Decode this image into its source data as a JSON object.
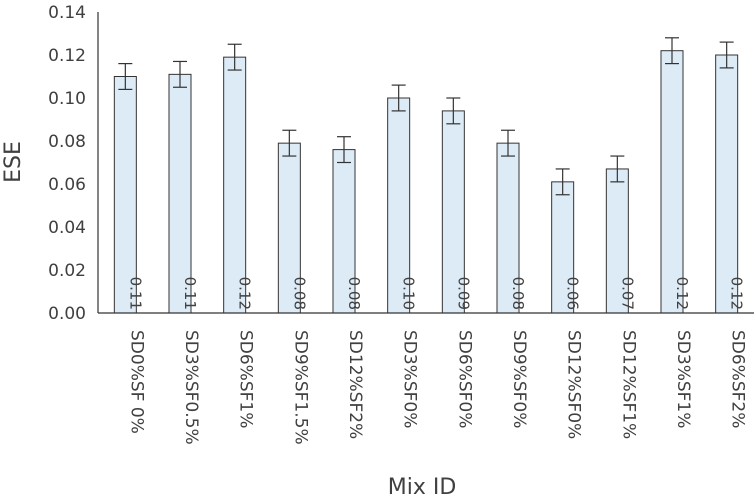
{
  "chart_data": {
    "type": "bar",
    "xlabel": "Mix ID",
    "ylabel": "ESE",
    "ylim": [
      0,
      0.14
    ],
    "yticks": [
      "0.00",
      "0.02",
      "0.04",
      "0.06",
      "0.08",
      "0.10",
      "0.12",
      "0.14"
    ],
    "grid": false,
    "legend": "none",
    "bar_color": "#ddebf7",
    "categories": [
      "SD0%SF 0%",
      "SD3%SF0.5%",
      "SD6%SF1%",
      "SD9%SF1.5%",
      "SD12%SF2%",
      "SD3%SF0%",
      "SD6%SF0%",
      "SD9%SF0%",
      "SD12%SF0%",
      "SD12%SF1%",
      "SD3%SF1%",
      "SD6%SF2%"
    ],
    "values": [
      0.11,
      0.111,
      0.119,
      0.079,
      0.076,
      0.1,
      0.094,
      0.079,
      0.061,
      0.067,
      0.122,
      0.12
    ],
    "errors": [
      0.006,
      0.006,
      0.006,
      0.006,
      0.006,
      0.006,
      0.006,
      0.006,
      0.006,
      0.006,
      0.006,
      0.006
    ],
    "data_labels": [
      "0.11",
      "0.11",
      "0.12",
      "0.08",
      "0.08",
      "0.10",
      "0.09",
      "0.08",
      "0.06",
      "0.07",
      "0.12",
      "0.12"
    ]
  }
}
